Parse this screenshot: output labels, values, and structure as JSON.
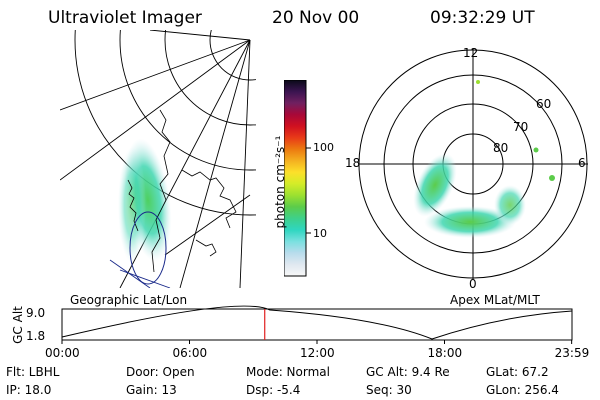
{
  "header": {
    "title": "Ultraviolet Imager",
    "date": "20 Nov 00",
    "time": "09:32:29 UT"
  },
  "geo_panel": {
    "label": "Geographic Lat/Lon"
  },
  "polar_panel": {
    "label": "Apex MLat/MLT",
    "mlt_labels": {
      "top": "12",
      "left": "18",
      "right": "6",
      "bottom": "0"
    },
    "mlat_labels": [
      "60",
      "70",
      "80"
    ]
  },
  "colorbar": {
    "unit_label": "photon cm⁻²s⁻¹",
    "ticks": [
      "100",
      "10"
    ],
    "scale": "log",
    "colors": [
      "#f8f8f8",
      "#e0e8f0",
      "#b8dcec",
      "#7ae0e0",
      "#2fd6c0",
      "#3ed08a",
      "#5ccc4a",
      "#9ce030",
      "#d4ec28",
      "#fce02a",
      "#f4b020",
      "#ec7a10",
      "#e83a18",
      "#d01020",
      "#a80838",
      "#702060",
      "#3a1450",
      "#0a0a18"
    ]
  },
  "altitude_plot": {
    "ylabel": "GC Alt",
    "y_ticks": [
      "9.0",
      "1.8"
    ],
    "x_ticks": [
      "00:00",
      "06:00",
      "12:00",
      "18:00",
      "23:59"
    ],
    "current_time_marker_hours": 9.54,
    "marker_color": "#e02020"
  },
  "footer": {
    "row1": [
      "Flt: LBHL",
      "Door: Open",
      "Mode: Normal",
      "GC Alt: 9.4 Re",
      "GLat:  67.2"
    ],
    "row2": [
      "IP: 18.0",
      "Gain: 13",
      "Dsp:   -5.4",
      "Seq: 30",
      "GLon: 256.4"
    ]
  }
}
